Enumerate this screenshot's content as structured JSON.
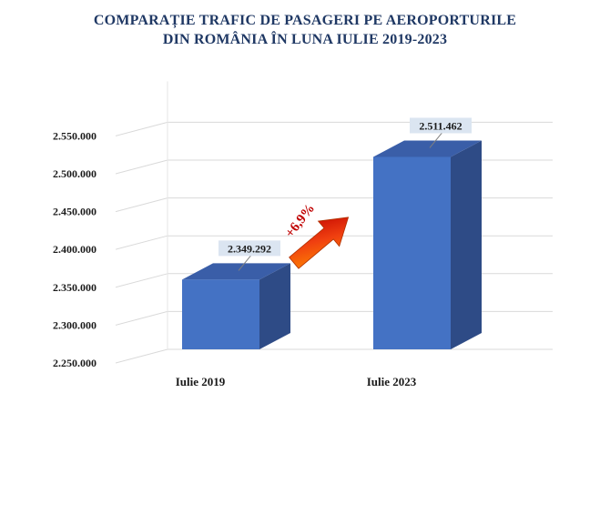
{
  "chart_data": {
    "type": "bar",
    "title": "COMPARAȚIE TRAFIC DE PASAGERI PE AEROPORTURILE",
    "subtitle": "DIN ROMÂNIA ÎN LUNA IULIE 2019-2023",
    "categories": [
      "Iulie 2019",
      "Iulie 2023"
    ],
    "values": [
      2349292,
      2511462
    ],
    "data_labels": [
      "2.349.292",
      "2.511.462"
    ],
    "ylim": [
      2250000,
      2550000
    ],
    "yticks": [
      2250000,
      2300000,
      2350000,
      2400000,
      2450000,
      2500000,
      2550000
    ],
    "ytick_labels": [
      "2.250.000",
      "2.300.000",
      "2.350.000",
      "2.400.000",
      "2.450.000",
      "2.500.000",
      "2.550.000"
    ],
    "grid": true,
    "annotation": "+6,9%",
    "colors": {
      "bar_front": "#4472c4",
      "bar_side": "#2e4b86",
      "bar_top": "#3a5ea8",
      "title": "#1f3864",
      "annotation": "#c00000"
    }
  }
}
